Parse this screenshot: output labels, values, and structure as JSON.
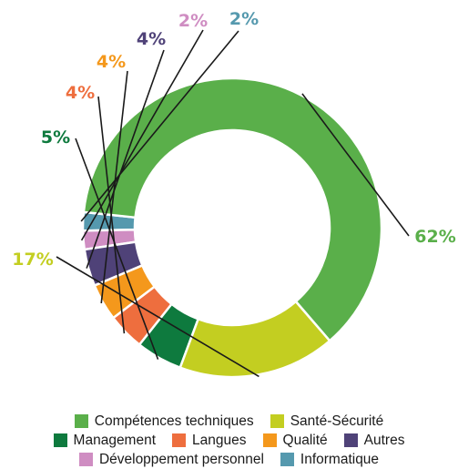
{
  "chart_data": {
    "type": "pie",
    "variant": "donut",
    "slices": [
      {
        "label": "Compétences techniques",
        "value": 62,
        "value_label": "62%",
        "color": "#5AAF4A"
      },
      {
        "label": "Santé-Sécurité",
        "value": 17,
        "value_label": "17%",
        "color": "#C3CE21"
      },
      {
        "label": "Management",
        "value": 5,
        "value_label": "5%",
        "color": "#0E7A3E"
      },
      {
        "label": "Langues",
        "value": 4,
        "value_label": "4%",
        "color": "#EE6E3E"
      },
      {
        "label": "Qualité",
        "value": 4,
        "value_label": "4%",
        "color": "#F4981C"
      },
      {
        "label": "Autres",
        "value": 4,
        "value_label": "4%",
        "color": "#4F4278"
      },
      {
        "label": "Développement personnel",
        "value": 2,
        "value_label": "2%",
        "color": "#CF8DC2"
      },
      {
        "label": "Informatique",
        "value": 2,
        "value_label": "2%",
        "color": "#5599AE"
      }
    ],
    "legend_position": "bottom",
    "legend_rows": [
      [
        0,
        1
      ],
      [
        2,
        3,
        4,
        5
      ],
      [
        6,
        7
      ]
    ]
  }
}
